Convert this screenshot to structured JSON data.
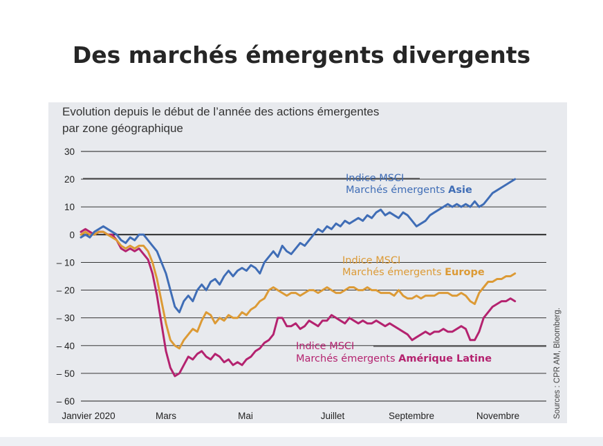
{
  "title": "Des marchés émergents divergents",
  "chart_data": {
    "type": "line",
    "subtitle_line1": "Evolution depuis le début de l’année des actions émergentes",
    "subtitle_line2": "par zone géographique",
    "source": "Sources : CPR AM, Bloomberg.",
    "ylim": [
      -60,
      30
    ],
    "y_ticks": [
      "30",
      "20",
      "10",
      "0",
      "– 10",
      "– 20",
      "– 30",
      "– 40",
      "– 50",
      "– 60"
    ],
    "x_tick_labels": [
      "Janvier 2020",
      "Mars",
      "Mai",
      "Juillet",
      "Septembre",
      "Novembre"
    ],
    "colors": {
      "asie": "#3f6db6",
      "europe": "#dc9a35",
      "amlat": "#b4226f",
      "background": "#e8eaee"
    },
    "series": [
      {
        "key": "asie",
        "annotation_line1": "Indice MSCI",
        "annotation_line2": "Marchés émergents",
        "annotation_bold": "Asie",
        "x": [
          0,
          0.5,
          1,
          1.5,
          2,
          2.5,
          3,
          3.5,
          4,
          4.5,
          5,
          5.5,
          6,
          6.5,
          7,
          7.5,
          8,
          8.5,
          9,
          9.5,
          10,
          10.5,
          11,
          11.5,
          12,
          12.5,
          13,
          13.5,
          14,
          14.5,
          15,
          15.5,
          16,
          16.5,
          17,
          17.5,
          18,
          18.5,
          19,
          19.5,
          20,
          20.5,
          21,
          21.5,
          22,
          22.5,
          23,
          23.5,
          24,
          24.5,
          25,
          25.5,
          26,
          26.5,
          27,
          27.5,
          28,
          28.5,
          29,
          29.5,
          30,
          30.5,
          31,
          31.5,
          32,
          32.5,
          33,
          33.5,
          34,
          34.5,
          35,
          35.5,
          36,
          36.5,
          37,
          37.5,
          38,
          38.5,
          39,
          39.5,
          40,
          40.5,
          41,
          41.5,
          42,
          42.5,
          43,
          43.5,
          44,
          44.5,
          45,
          45.5,
          46,
          46.5,
          47,
          47.5,
          48,
          48.5
        ],
        "values": [
          -1,
          0,
          -1,
          1,
          2,
          3,
          2,
          1,
          0,
          -2,
          -3,
          -1,
          -2,
          0,
          0,
          -2,
          -4,
          -6,
          -10,
          -14,
          -20,
          -26,
          -28,
          -24,
          -22,
          -24,
          -20,
          -18,
          -20,
          -17,
          -16,
          -18,
          -15,
          -13,
          -15,
          -13,
          -12,
          -13,
          -11,
          -12,
          -14,
          -10,
          -8,
          -6,
          -8,
          -4,
          -6,
          -7,
          -5,
          -3,
          -4,
          -2,
          0,
          2,
          1,
          3,
          2,
          4,
          3,
          5,
          4,
          5,
          6,
          5,
          7,
          6,
          8,
          9,
          7,
          8,
          7,
          6,
          8,
          7,
          5,
          3,
          4,
          5,
          7,
          8,
          9,
          10,
          11,
          10,
          11,
          10,
          11,
          10,
          12,
          10,
          11,
          13,
          15,
          16,
          17,
          18,
          19,
          20
        ]
      },
      {
        "key": "europe",
        "annotation_line1": "Indice MSCI",
        "annotation_line2": "Marchés émergents",
        "annotation_bold": "Europe",
        "x": [
          0,
          0.5,
          1,
          1.5,
          2,
          2.5,
          3,
          3.5,
          4,
          4.5,
          5,
          5.5,
          6,
          6.5,
          7,
          7.5,
          8,
          8.5,
          9,
          9.5,
          10,
          10.5,
          11,
          11.5,
          12,
          12.5,
          13,
          13.5,
          14,
          14.5,
          15,
          15.5,
          16,
          16.5,
          17,
          17.5,
          18,
          18.5,
          19,
          19.5,
          20,
          20.5,
          21,
          21.5,
          22,
          22.5,
          23,
          23.5,
          24,
          24.5,
          25,
          25.5,
          26,
          26.5,
          27,
          27.5,
          28,
          28.5,
          29,
          29.5,
          30,
          30.5,
          31,
          31.5,
          32,
          32.5,
          33,
          33.5,
          34,
          34.5,
          35,
          35.5,
          36,
          36.5,
          37,
          37.5,
          38,
          38.5,
          39,
          39.5,
          40,
          40.5,
          41,
          41.5,
          42,
          42.5,
          43,
          43.5,
          44,
          44.5,
          45,
          45.5,
          46,
          46.5,
          47,
          47.5,
          48,
          48.5
        ],
        "values": [
          0,
          1,
          0,
          0,
          1,
          1,
          0,
          -1,
          -2,
          -4,
          -5,
          -4,
          -5,
          -4,
          -4,
          -6,
          -10,
          -16,
          -24,
          -32,
          -38,
          -40,
          -41,
          -38,
          -36,
          -34,
          -35,
          -31,
          -28,
          -29,
          -32,
          -30,
          -31,
          -29,
          -30,
          -30,
          -28,
          -29,
          -27,
          -26,
          -24,
          -23,
          -20,
          -19,
          -20,
          -21,
          -22,
          -21,
          -21,
          -22,
          -21,
          -20,
          -20,
          -21,
          -20,
          -19,
          -20,
          -21,
          -21,
          -20,
          -19,
          -19,
          -20,
          -20,
          -19,
          -20,
          -20,
          -21,
          -21,
          -21,
          -22,
          -20,
          -22,
          -23,
          -23,
          -22,
          -23,
          -22,
          -22,
          -22,
          -21,
          -21,
          -21,
          -22,
          -22,
          -21,
          -22,
          -24,
          -25,
          -21,
          -19,
          -17,
          -17,
          -16,
          -16,
          -15,
          -15,
          -14
        ]
      },
      {
        "key": "amlat",
        "annotation_line1": "Indice MSCI",
        "annotation_line2": "Marchés émergents",
        "annotation_bold": "Amérique Latine",
        "x": [
          0,
          0.5,
          1,
          1.5,
          2,
          2.5,
          3,
          3.5,
          4,
          4.5,
          5,
          5.5,
          6,
          6.5,
          7,
          7.5,
          8,
          8.5,
          9,
          9.5,
          10,
          10.5,
          11,
          11.5,
          12,
          12.5,
          13,
          13.5,
          14,
          14.5,
          15,
          15.5,
          16,
          16.5,
          17,
          17.5,
          18,
          18.5,
          19,
          19.5,
          20,
          20.5,
          21,
          21.5,
          22,
          22.5,
          23,
          23.5,
          24,
          24.5,
          25,
          25.5,
          26,
          26.5,
          27,
          27.5,
          28,
          28.5,
          29,
          29.5,
          30,
          30.5,
          31,
          31.5,
          32,
          32.5,
          33,
          33.5,
          34,
          34.5,
          35,
          35.5,
          36,
          36.5,
          37,
          37.5,
          38,
          38.5,
          39,
          39.5,
          40,
          40.5,
          41,
          41.5,
          42,
          42.5,
          43,
          43.5,
          44,
          44.5,
          45,
          45.5,
          46,
          46.5,
          47,
          47.5,
          48,
          48.5
        ],
        "values": [
          1,
          2,
          1,
          0,
          1,
          1,
          0,
          0,
          -2,
          -5,
          -6,
          -5,
          -6,
          -5,
          -7,
          -9,
          -14,
          -22,
          -32,
          -42,
          -48,
          -51,
          -50,
          -47,
          -44,
          -45,
          -43,
          -42,
          -44,
          -45,
          -43,
          -44,
          -46,
          -45,
          -47,
          -46,
          -47,
          -45,
          -44,
          -42,
          -41,
          -39,
          -38,
          -36,
          -30,
          -30,
          -33,
          -33,
          -32,
          -34,
          -33,
          -31,
          -32,
          -33,
          -31,
          -31,
          -29,
          -30,
          -31,
          -32,
          -30,
          -31,
          -32,
          -31,
          -32,
          -32,
          -31,
          -32,
          -33,
          -32,
          -33,
          -34,
          -35,
          -36,
          -38,
          -37,
          -36,
          -35,
          -36,
          -35,
          -35,
          -34,
          -35,
          -35,
          -34,
          -33,
          -34,
          -38,
          -38,
          -35,
          -30,
          -28,
          -26,
          -25,
          -24,
          -24,
          -23,
          -24
        ]
      }
    ]
  }
}
